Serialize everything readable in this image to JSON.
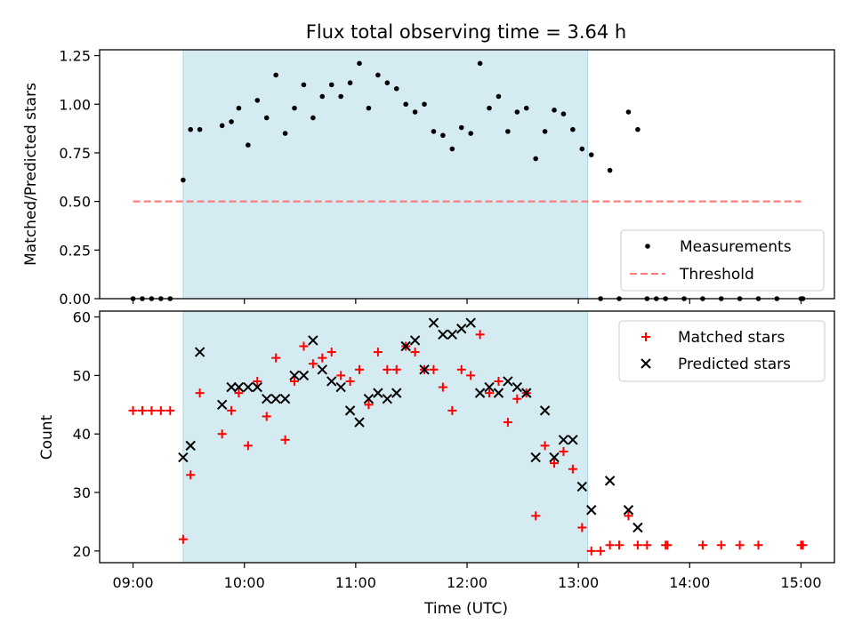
{
  "colors": {
    "shade": "#add8e6",
    "threshold": "#ff7f7f",
    "matched": "#ff0000",
    "predicted": "#000000",
    "measure": "#000000"
  },
  "chart_data": [
    {
      "type": "scatter",
      "title": "Flux total observing time = 3.64 h",
      "ylabel": "Matched/Predicted stars",
      "xlabel": "",
      "xlim": [
        "08:42",
        "15:18"
      ],
      "ylim": [
        0,
        1.28
      ],
      "yticks": [
        "0.00",
        "0.25",
        "0.50",
        "0.75",
        "1.00",
        "1.25"
      ],
      "shaded_span": [
        "09:27",
        "13:05"
      ],
      "legend_position": "lower right",
      "threshold": {
        "name": "Threshold",
        "value": 0.5,
        "x_range": [
          "09:00",
          "15:00"
        ]
      },
      "series": [
        {
          "name": "Measurements",
          "points": [
            [
              "09:00",
              0
            ],
            [
              "09:05",
              0
            ],
            [
              "09:10",
              0
            ],
            [
              "09:15",
              0
            ],
            [
              "09:20",
              0
            ],
            [
              "09:27",
              0.61
            ],
            [
              "09:31",
              0.87
            ],
            [
              "09:36",
              0.87
            ],
            [
              "09:48",
              0.89
            ],
            [
              "09:53",
              0.91
            ],
            [
              "09:57",
              0.98
            ],
            [
              "10:02",
              0.79
            ],
            [
              "10:07",
              1.02
            ],
            [
              "10:12",
              0.93
            ],
            [
              "10:17",
              1.15
            ],
            [
              "10:22",
              0.85
            ],
            [
              "10:27",
              0.98
            ],
            [
              "10:32",
              1.1
            ],
            [
              "10:37",
              0.93
            ],
            [
              "10:42",
              1.04
            ],
            [
              "10:47",
              1.1
            ],
            [
              "10:52",
              1.04
            ],
            [
              "10:57",
              1.11
            ],
            [
              "11:02",
              1.21
            ],
            [
              "11:07",
              0.98
            ],
            [
              "11:12",
              1.15
            ],
            [
              "11:17",
              1.11
            ],
            [
              "11:22",
              1.08
            ],
            [
              "11:27",
              1.0
            ],
            [
              "11:32",
              0.96
            ],
            [
              "11:37",
              1.0
            ],
            [
              "11:42",
              0.86
            ],
            [
              "11:47",
              0.84
            ],
            [
              "11:52",
              0.77
            ],
            [
              "11:57",
              0.88
            ],
            [
              "12:02",
              0.85
            ],
            [
              "12:07",
              1.21
            ],
            [
              "12:12",
              0.98
            ],
            [
              "12:17",
              1.04
            ],
            [
              "12:22",
              0.86
            ],
            [
              "12:27",
              0.96
            ],
            [
              "12:32",
              0.98
            ],
            [
              "12:37",
              0.72
            ],
            [
              "12:42",
              0.86
            ],
            [
              "12:47",
              0.97
            ],
            [
              "12:52",
              0.95
            ],
            [
              "12:57",
              0.87
            ],
            [
              "13:02",
              0.77
            ],
            [
              "13:07",
              0.74
            ],
            [
              "13:12",
              0
            ],
            [
              "13:17",
              0.66
            ],
            [
              "13:22",
              0
            ],
            [
              "13:27",
              0.96
            ],
            [
              "13:32",
              0.87
            ],
            [
              "13:37",
              0
            ],
            [
              "13:42",
              0
            ],
            [
              "13:47",
              0
            ],
            [
              "13:57",
              0
            ],
            [
              "14:07",
              0
            ],
            [
              "14:17",
              0
            ],
            [
              "14:27",
              0
            ],
            [
              "14:37",
              0
            ],
            [
              "14:47",
              0
            ],
            [
              "15:00",
              0
            ],
            [
              "15:01",
              0
            ]
          ]
        }
      ]
    },
    {
      "type": "scatter",
      "title": "",
      "ylabel": "Count",
      "xlabel": "Time (UTC)",
      "xlim": [
        "08:42",
        "15:18"
      ],
      "ylim": [
        18,
        61
      ],
      "yticks": [
        "20",
        "30",
        "40",
        "50",
        "60"
      ],
      "xticks": [
        "09:00",
        "10:00",
        "11:00",
        "12:00",
        "13:00",
        "14:00",
        "15:00"
      ],
      "shaded_span": [
        "09:27",
        "13:05"
      ],
      "legend_position": "upper right",
      "series": [
        {
          "name": "Matched stars",
          "marker": "plus",
          "points": [
            [
              "09:00",
              44
            ],
            [
              "09:05",
              44
            ],
            [
              "09:10",
              44
            ],
            [
              "09:15",
              44
            ],
            [
              "09:20",
              44
            ],
            [
              "09:27",
              22
            ],
            [
              "09:31",
              33
            ],
            [
              "09:36",
              47
            ],
            [
              "09:48",
              40
            ],
            [
              "09:53",
              44
            ],
            [
              "09:57",
              47
            ],
            [
              "10:02",
              38
            ],
            [
              "10:07",
              49
            ],
            [
              "10:12",
              43
            ],
            [
              "10:17",
              53
            ],
            [
              "10:22",
              39
            ],
            [
              "10:27",
              49
            ],
            [
              "10:32",
              55
            ],
            [
              "10:37",
              52
            ],
            [
              "10:42",
              53
            ],
            [
              "10:47",
              54
            ],
            [
              "10:52",
              50
            ],
            [
              "10:57",
              49
            ],
            [
              "11:02",
              51
            ],
            [
              "11:07",
              45
            ],
            [
              "11:12",
              54
            ],
            [
              "11:17",
              51
            ],
            [
              "11:22",
              51
            ],
            [
              "11:27",
              55
            ],
            [
              "11:32",
              54
            ],
            [
              "11:37",
              51
            ],
            [
              "11:42",
              51
            ],
            [
              "11:47",
              48
            ],
            [
              "11:52",
              44
            ],
            [
              "11:57",
              51
            ],
            [
              "12:02",
              50
            ],
            [
              "12:07",
              57
            ],
            [
              "12:12",
              47
            ],
            [
              "12:17",
              49
            ],
            [
              "12:22",
              42
            ],
            [
              "12:27",
              46
            ],
            [
              "12:32",
              47
            ],
            [
              "12:37",
              26
            ],
            [
              "12:42",
              38
            ],
            [
              "12:47",
              35
            ],
            [
              "12:52",
              37
            ],
            [
              "12:57",
              34
            ],
            [
              "13:02",
              24
            ],
            [
              "13:07",
              20
            ],
            [
              "13:12",
              20
            ],
            [
              "13:17",
              21
            ],
            [
              "13:22",
              21
            ],
            [
              "13:27",
              26
            ],
            [
              "13:32",
              21
            ],
            [
              "13:37",
              21
            ],
            [
              "13:47",
              21
            ],
            [
              "13:48",
              21
            ],
            [
              "14:07",
              21
            ],
            [
              "14:17",
              21
            ],
            [
              "14:27",
              21
            ],
            [
              "14:37",
              21
            ],
            [
              "15:00",
              21
            ],
            [
              "15:01",
              21
            ]
          ]
        },
        {
          "name": "Predicted stars",
          "marker": "x",
          "points": [
            [
              "09:27",
              36
            ],
            [
              "09:31",
              38
            ],
            [
              "09:36",
              54
            ],
            [
              "09:48",
              45
            ],
            [
              "09:53",
              48
            ],
            [
              "09:57",
              48
            ],
            [
              "10:02",
              48
            ],
            [
              "10:07",
              48
            ],
            [
              "10:12",
              46
            ],
            [
              "10:17",
              46
            ],
            [
              "10:22",
              46
            ],
            [
              "10:27",
              50
            ],
            [
              "10:32",
              50
            ],
            [
              "10:37",
              56
            ],
            [
              "10:42",
              51
            ],
            [
              "10:47",
              49
            ],
            [
              "10:52",
              48
            ],
            [
              "10:57",
              44
            ],
            [
              "11:02",
              42
            ],
            [
              "11:07",
              46
            ],
            [
              "11:12",
              47
            ],
            [
              "11:17",
              46
            ],
            [
              "11:22",
              47
            ],
            [
              "11:27",
              55
            ],
            [
              "11:32",
              56
            ],
            [
              "11:37",
              51
            ],
            [
              "11:42",
              59
            ],
            [
              "11:47",
              57
            ],
            [
              "11:52",
              57
            ],
            [
              "11:57",
              58
            ],
            [
              "12:02",
              59
            ],
            [
              "12:07",
              47
            ],
            [
              "12:12",
              48
            ],
            [
              "12:17",
              47
            ],
            [
              "12:22",
              49
            ],
            [
              "12:27",
              48
            ],
            [
              "12:32",
              47
            ],
            [
              "12:37",
              36
            ],
            [
              "12:42",
              44
            ],
            [
              "12:47",
              36
            ],
            [
              "12:52",
              39
            ],
            [
              "12:57",
              39
            ],
            [
              "13:02",
              31
            ],
            [
              "13:07",
              27
            ],
            [
              "13:17",
              32
            ],
            [
              "13:27",
              27
            ],
            [
              "13:32",
              24
            ]
          ]
        }
      ]
    }
  ]
}
